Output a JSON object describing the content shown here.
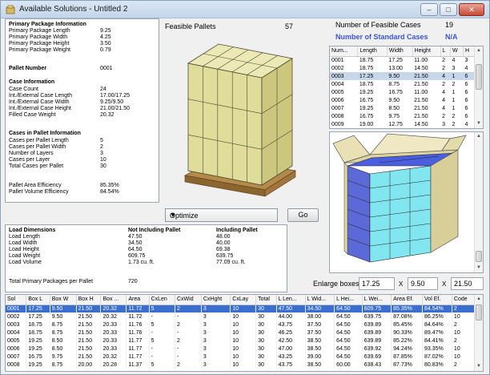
{
  "window": {
    "title": "Available Solutions - Untitled 2"
  },
  "primary_package": {
    "heading": "Primary Package Information",
    "rows": [
      {
        "label": "Primary Package Length",
        "value": "9.25"
      },
      {
        "label": "Primary Package Width",
        "value": "4.25"
      },
      {
        "label": "Primary Package Height",
        "value": "3.50"
      },
      {
        "label": "Primary Package Weight",
        "value": "0.79"
      }
    ]
  },
  "pallet_number": {
    "label": "Pallet Number",
    "value": "0001"
  },
  "case_info": {
    "heading": "Case Information",
    "rows": [
      {
        "label": "Case Count",
        "value": "24"
      },
      {
        "label": "Int./External Case Length",
        "value": "17.00/17.25"
      },
      {
        "label": "Int./External Case Width",
        "value": "9.25/9.50"
      },
      {
        "label": "Int./External Case Height",
        "value": "21.00/21.50"
      },
      {
        "label": "Filled Case Weight",
        "value": "20.32"
      }
    ]
  },
  "cases_in_pallet": {
    "heading": "Cases in Pallet Information",
    "rows": [
      {
        "label": "Cases per Pallet Length",
        "value": "5"
      },
      {
        "label": "Cases per Pallet Width",
        "value": "2"
      },
      {
        "label": "Number of Layers",
        "value": "3"
      },
      {
        "label": "Cases per Layer",
        "value": "10"
      },
      {
        "label": "Total Cases per Pallet",
        "value": "30"
      }
    ]
  },
  "efficiency": {
    "rows": [
      {
        "label": "Pallet Area Efficiency",
        "value": "85.35%"
      },
      {
        "label": "Pallet Volume Efficiency",
        "value": "84.54%"
      }
    ]
  },
  "feasible": {
    "label": "Feasible Pallets",
    "count": "57"
  },
  "feasible_cases": {
    "label": "Number of Feasible Cases",
    "count": "19"
  },
  "standard_cases": {
    "label": "Number of Standard Cases",
    "count": "N/A"
  },
  "cases_table": {
    "columns": [
      "Num...",
      "Length",
      "Width",
      "Height",
      "L",
      "W",
      "H"
    ],
    "rows": [
      [
        "0001",
        "18.75",
        "17.25",
        "11.00",
        "2",
        "4",
        "3"
      ],
      [
        "0002",
        "18.75",
        "13.00",
        "14.50",
        "2",
        "3",
        "4"
      ],
      [
        "0003",
        "17.25",
        "9.50",
        "21.50",
        "4",
        "1",
        "6"
      ],
      [
        "0004",
        "18.75",
        "8.75",
        "21.50",
        "2",
        "2",
        "6"
      ],
      [
        "0005",
        "19.25",
        "16.75",
        "11.00",
        "4",
        "1",
        "6"
      ],
      [
        "0006",
        "16.75",
        "9.50",
        "21.50",
        "4",
        "1",
        "6"
      ],
      [
        "0007",
        "19.25",
        "8.50",
        "21.50",
        "4",
        "1",
        "6"
      ],
      [
        "0008",
        "16.75",
        "9.75",
        "21.50",
        "2",
        "2",
        "6"
      ],
      [
        "0009",
        "19.00",
        "12.75",
        "14.50",
        "3",
        "2",
        "4"
      ]
    ],
    "selected_index": 2
  },
  "optimize": {
    "value": "Optimize"
  },
  "go_button": "Go",
  "load_dimensions": {
    "heading": "Load Dimensions",
    "col1": "Not Including Pallet",
    "col2": "Including Pallet",
    "rows": [
      {
        "label": "Load Length",
        "v1": "47.50",
        "v2": "48.00"
      },
      {
        "label": "Load Width",
        "v1": "34.50",
        "v2": "40.00"
      },
      {
        "label": "Load Height",
        "v1": "64.50",
        "v2": "69.38"
      },
      {
        "label": "Load Weight",
        "v1": "609.75",
        "v2": "639.75"
      },
      {
        "label": "Load Volume",
        "v1": "1.73 cu. ft.",
        "v2": "77.09 cu. ft."
      }
    ],
    "total": {
      "label": "Total Primary Packages per Pallet",
      "value": "720"
    }
  },
  "enlarge": {
    "label": "Enlarge boxes",
    "v1": "17.25",
    "x": "X",
    "v2": "9.50",
    "v3": "21.50"
  },
  "results": {
    "columns": [
      "Sol",
      "Box L",
      "Box W",
      "Box H",
      "Box ...",
      "Area",
      "CxLen",
      "CxWid",
      "CxHght",
      "CxLay",
      "Total",
      "L Len...",
      "L Wid...",
      "L Hei...",
      "L Wei...",
      "Area Ef.",
      "Vol Ef.",
      "Code"
    ],
    "rows": [
      [
        "0001",
        "17.25",
        "9.50",
        "21.50",
        "20.32",
        "11.72",
        "5",
        "2",
        "3",
        "10",
        "30",
        "47.50",
        "34.50",
        "64.50",
        "609.75",
        "85.35%",
        "84.54%",
        "2"
      ],
      [
        "0002",
        "17.25",
        "9.50",
        "21.50",
        "20.32",
        "11.72",
        "-",
        "-",
        "3",
        "10",
        "30",
        "44.00",
        "38.00",
        "64.50",
        "639.75",
        "87.08%",
        "86.25%",
        "10"
      ],
      [
        "0003",
        "18.75",
        "8.75",
        "21.50",
        "20.33",
        "11.76",
        "5",
        "2",
        "3",
        "10",
        "30",
        "43.75",
        "37.50",
        "64.50",
        "639.89",
        "85.45%",
        "84.64%",
        "2"
      ],
      [
        "0004",
        "18.75",
        "8.75",
        "21.50",
        "20.33",
        "11.76",
        "-",
        "-",
        "3",
        "10",
        "30",
        "46.25",
        "37.50",
        "64.50",
        "639.89",
        "90.33%",
        "89.47%",
        "10"
      ],
      [
        "0005",
        "19.25",
        "8.50",
        "21.50",
        "20.33",
        "11.77",
        "5",
        "2",
        "3",
        "10",
        "30",
        "42.50",
        "38.50",
        "64.50",
        "639.89",
        "85.22%",
        "84.41%",
        "2"
      ],
      [
        "0006",
        "19.25",
        "8.50",
        "21.50",
        "20.33",
        "11.77",
        "-",
        "-",
        "3",
        "10",
        "30",
        "47.00",
        "38.50",
        "64.50",
        "639.92",
        "94.24%",
        "93.35%",
        "10"
      ],
      [
        "0007",
        "16.75",
        "9.75",
        "21.50",
        "20.32",
        "11.77",
        "-",
        "-",
        "3",
        "10",
        "30",
        "43.25",
        "39.00",
        "64.50",
        "639.69",
        "87.85%",
        "87.02%",
        "10"
      ],
      [
        "0008",
        "19.25",
        "8.75",
        "20.00",
        "20.28",
        "11.37",
        "5",
        "2",
        "3",
        "10",
        "30",
        "43.75",
        "38.50",
        "60.00",
        "638.43",
        "87.73%",
        "80.83%",
        "2"
      ]
    ],
    "selected_index": 0
  },
  "colors": {
    "selection": "#3a6fd0",
    "accent_blue": "#3a55d8",
    "case_tan": "#e6e2a6",
    "case_blue": "#4a5fe0",
    "case_cyan": "#7fe3ee"
  }
}
